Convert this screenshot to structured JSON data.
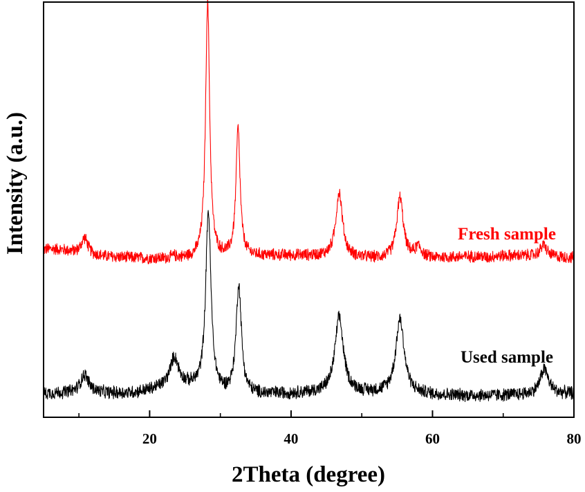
{
  "chart_data": {
    "type": "line",
    "title": "",
    "xlabel": "2Theta (degree)",
    "ylabel": "Intensity (a.u.)",
    "xlim": [
      5,
      80
    ],
    "ylim": [
      0,
      100
    ],
    "x_ticks_major": [
      20,
      40,
      60,
      80
    ],
    "x_ticks_minor": [
      10,
      30,
      50,
      70
    ],
    "y_tick_labels": false,
    "grid": false,
    "legend": "none (series labeled inline, right side)",
    "series": [
      {
        "name": "Fresh sample",
        "color": "#ff0000",
        "peaks": [
          {
            "x": 10.8,
            "y": 43.2
          },
          {
            "x": 23.5,
            "y": 38.6
          },
          {
            "x": 28.2,
            "y": 100
          },
          {
            "x": 32.5,
            "y": 69.3
          },
          {
            "x": 46.8,
            "y": 54.2
          },
          {
            "x": 55.4,
            "y": 52.9
          },
          {
            "x": 58.0,
            "y": 40.8
          },
          {
            "x": 67.8,
            "y": 38.4
          },
          {
            "x": 75.7,
            "y": 41.5
          }
        ]
      },
      {
        "name": "Used sample",
        "color": "#000000",
        "peaks": [
          {
            "x": 10.8,
            "y": 10.2
          },
          {
            "x": 23.5,
            "y": 14.2
          },
          {
            "x": 28.3,
            "y": 49.3
          },
          {
            "x": 32.6,
            "y": 31.6
          },
          {
            "x": 46.8,
            "y": 23.9
          },
          {
            "x": 55.4,
            "y": 23.6
          },
          {
            "x": 75.8,
            "y": 11.6
          }
        ]
      }
    ]
  }
}
